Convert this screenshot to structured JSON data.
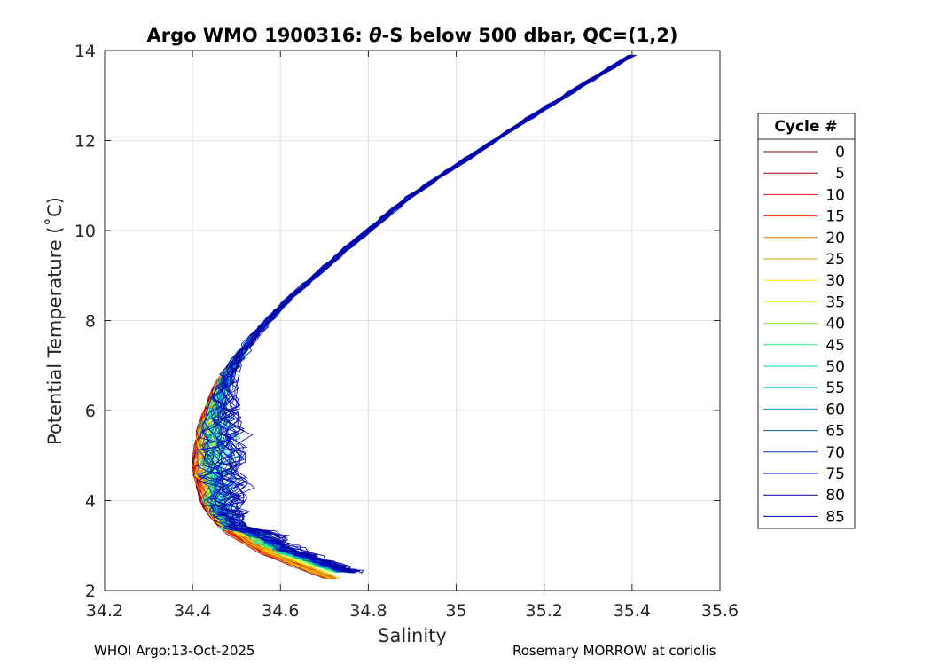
{
  "chart_data": {
    "type": "line",
    "title_prefix": "Argo WMO 1900316: ",
    "title_theta": "θ",
    "title_suffix": "-S below 500 dbar,  QC=(1,2)",
    "xlabel": "Salinity",
    "ylabel": "Potential Temperature (˚C)",
    "xlim": [
      34.2,
      35.6
    ],
    "ylim": [
      2,
      14
    ],
    "xticks": [
      34.2,
      34.4,
      34.6,
      34.8,
      35,
      35.2,
      35.4,
      35.6
    ],
    "yticks": [
      2,
      4,
      6,
      8,
      10,
      12,
      14
    ],
    "grid": true,
    "legend": {
      "title": "Cycle #",
      "placement": "right-outside",
      "entries": [
        {
          "label": "0",
          "color": "#800000"
        },
        {
          "label": "5",
          "color": "#aa0000"
        },
        {
          "label": "10",
          "color": "#dd1111"
        },
        {
          "label": "15",
          "color": "#ff3300"
        },
        {
          "label": "20",
          "color": "#ff7700"
        },
        {
          "label": "25",
          "color": "#ccaa00"
        },
        {
          "label": "30",
          "color": "#ffee00"
        },
        {
          "label": "35",
          "color": "#ccff33"
        },
        {
          "label": "40",
          "color": "#77ee44"
        },
        {
          "label": "45",
          "color": "#33ee88"
        },
        {
          "label": "50",
          "color": "#00ddbb"
        },
        {
          "label": "55",
          "color": "#00ccee"
        },
        {
          "label": "60",
          "color": "#0099cc"
        },
        {
          "label": "65",
          "color": "#006688"
        },
        {
          "label": "70",
          "color": "#0033cc"
        },
        {
          "label": "75",
          "color": "#0000dd"
        },
        {
          "label": "80",
          "color": "#000099"
        },
        {
          "label": "85",
          "color": "#0000aa"
        }
      ]
    },
    "profile_template": {
      "salinity": [
        35.4,
        35.15,
        34.9,
        34.75,
        34.62,
        34.52,
        34.45,
        34.41,
        34.4,
        34.42,
        34.47,
        34.55,
        34.64,
        34.7
      ],
      "theta": [
        13.9,
        12.4,
        10.8,
        9.6,
        8.5,
        7.5,
        6.6,
        5.6,
        4.7,
        3.9,
        3.3,
        2.9,
        2.6,
        2.4
      ]
    },
    "spread_notes": "red/orange early cycles sit on the fresh (left) edge of the envelope below 5°C; blue late cycles spread saltier and noisier between 3 and 7°C"
  },
  "footer": {
    "left": "WHOI Argo:13-Oct-2025",
    "right": "Rosemary MORROW at coriolis"
  }
}
